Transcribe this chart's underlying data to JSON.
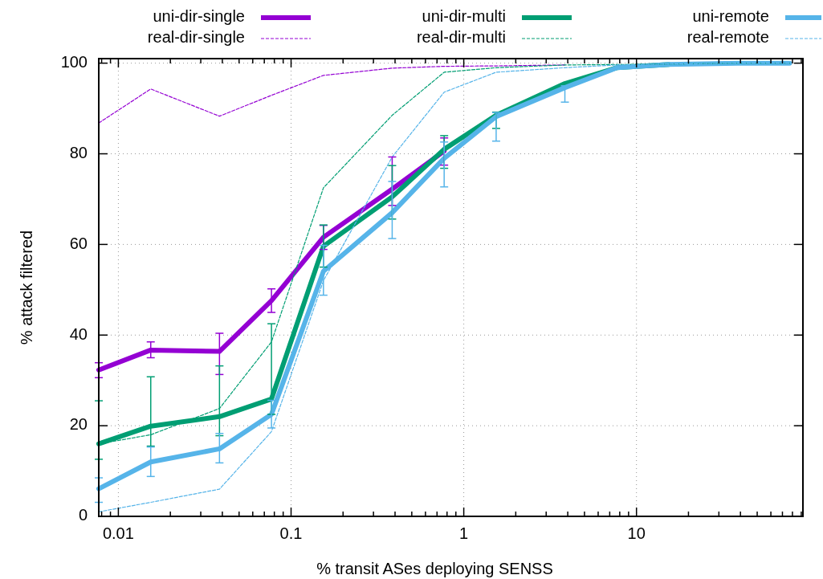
{
  "chart_data": {
    "type": "line",
    "xlabel": "% transit ASes deploying SENSS",
    "ylabel": "% attack filtered",
    "log": "x",
    "grid": true,
    "legend": "top",
    "xlim": [
      0.0077,
      92
    ],
    "ylim": [
      0,
      101
    ],
    "xticks": [
      {
        "value": 0.008,
        "label": null
      },
      {
        "value": 0.009,
        "label": null
      },
      0.01,
      {
        "value": 0.02,
        "label": null
      },
      {
        "value": 0.03,
        "label": null
      },
      {
        "value": 0.04,
        "label": null
      },
      {
        "value": 0.05,
        "label": null
      },
      {
        "value": 0.06,
        "label": null
      },
      {
        "value": 0.07,
        "label": null
      },
      {
        "value": 0.08,
        "label": null
      },
      {
        "value": 0.09,
        "label": null
      },
      0.1,
      {
        "value": 0.2,
        "label": null
      },
      {
        "value": 0.3,
        "label": null
      },
      {
        "value": 0.4,
        "label": null
      },
      {
        "value": 0.5,
        "label": null
      },
      {
        "value": 0.6,
        "label": null
      },
      {
        "value": 0.7,
        "label": null
      },
      {
        "value": 0.8,
        "label": null
      },
      {
        "value": 0.9,
        "label": null
      },
      1,
      {
        "value": 2,
        "label": null
      },
      {
        "value": 3,
        "label": null
      },
      {
        "value": 4,
        "label": null
      },
      {
        "value": 5,
        "label": null
      },
      {
        "value": 6,
        "label": null
      },
      {
        "value": 7,
        "label": null
      },
      {
        "value": 8,
        "label": null
      },
      {
        "value": 9,
        "label": null
      },
      10,
      {
        "value": 20,
        "label": null
      },
      {
        "value": 30,
        "label": null
      },
      {
        "value": 40,
        "label": null
      },
      {
        "value": 50,
        "label": null
      },
      {
        "value": 60,
        "label": null
      },
      {
        "value": 70,
        "label": null
      },
      {
        "value": 80,
        "label": null
      },
      {
        "value": 90,
        "label": null
      }
    ],
    "yticks": [
      0,
      20,
      40,
      60,
      80,
      100
    ],
    "x": [
      0.0077,
      0.0154,
      0.0385,
      0.077,
      0.154,
      0.385,
      0.77,
      1.54,
      3.85,
      7.7,
      15.4,
      38.5,
      77
    ],
    "series": [
      {
        "name": "uni-dir-single",
        "color": "#9400d3",
        "line_style": "solid",
        "values": [
          32.3,
          36.7,
          36.4,
          47.6,
          61.6,
          72.2,
          80.6,
          null,
          null,
          null,
          null,
          null,
          null
        ],
        "errors": [
          [
            30.6,
            33.9
          ],
          [
            35,
            38.5
          ],
          [
            31.3,
            40.4
          ],
          [
            45,
            50.2
          ],
          [
            58.9,
            64.2
          ],
          [
            68.6,
            79.3
          ],
          [
            77.5,
            83.5
          ],
          null,
          null,
          null,
          null,
          null,
          null
        ]
      },
      {
        "name": "real-dir-single",
        "color": "#9400d3",
        "line_style": "dashed",
        "values": [
          86.8,
          94.3,
          88.3,
          92.9,
          97.3,
          98.9,
          99.3,
          99.4,
          99.6,
          null,
          null,
          null,
          null
        ]
      },
      {
        "name": "uni-dir-multi",
        "color": "#009e73",
        "line_style": "solid",
        "values": [
          16,
          19.9,
          22,
          25.9,
          59.6,
          70.5,
          81,
          88.5,
          95.5,
          99,
          99.7,
          null,
          null
        ],
        "errors": [
          [
            12.6,
            25.5
          ],
          [
            15.5,
            30.8
          ],
          [
            17.8,
            33.2
          ],
          [
            22.5,
            42.5
          ],
          [
            55,
            64.3
          ],
          [
            65.6,
            77.4
          ],
          [
            76.8,
            84
          ],
          [
            85.6,
            89.2
          ],
          null,
          null,
          null,
          null,
          null
        ]
      },
      {
        "name": "real-dir-multi",
        "color": "#009e73",
        "line_style": "dashed",
        "values": [
          16,
          18,
          23.8,
          38.5,
          72.5,
          88.5,
          98,
          99,
          99.6,
          99.7,
          99.8,
          100,
          100
        ]
      },
      {
        "name": "uni-remote",
        "color": "#56b4e9",
        "line_style": "solid",
        "values": [
          6.1,
          12,
          14.9,
          22.5,
          54.1,
          67,
          79,
          88.2,
          94.6,
          99,
          99.7,
          100,
          100
        ],
        "errors": [
          [
            3.1,
            8.5
          ],
          [
            8.8,
            15.3
          ],
          [
            11.8,
            18.3
          ],
          [
            19.5,
            25.6
          ],
          [
            48.8,
            59.8
          ],
          [
            61.3,
            73.9
          ],
          [
            72.7,
            82.6
          ],
          [
            82.8,
            89.1
          ],
          [
            91.4,
            95
          ],
          null,
          null,
          null,
          null
        ]
      },
      {
        "name": "real-remote",
        "color": "#56b4e9",
        "line_style": "dashed",
        "values": [
          1,
          3.1,
          6,
          18.7,
          52,
          79.3,
          93.6,
          98,
          99,
          99.6,
          99.8,
          100,
          100
        ]
      }
    ]
  }
}
